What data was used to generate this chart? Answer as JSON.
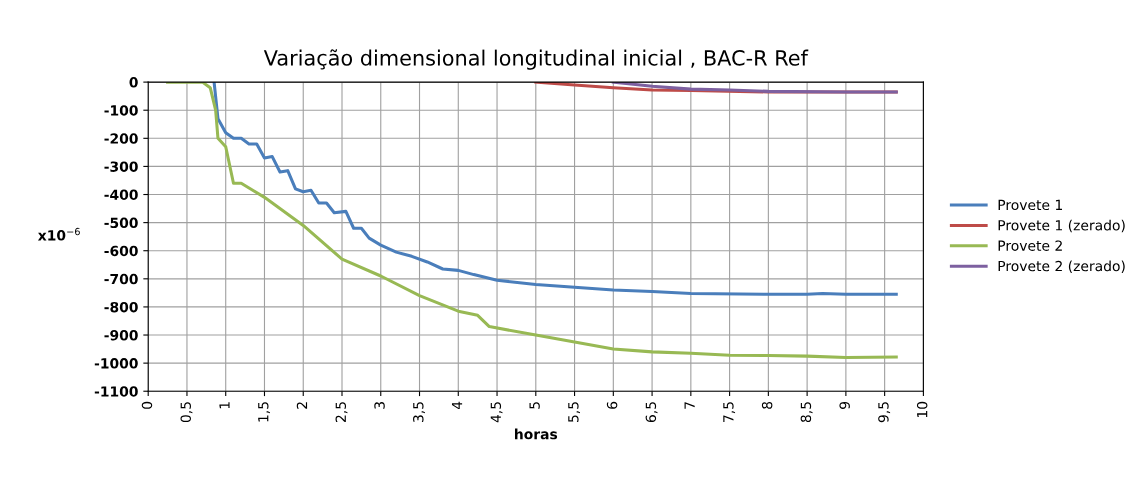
{
  "chart_data": {
    "type": "line",
    "title": "Variação dimensional longitudinal inicial , BAC-R Ref",
    "xlabel": "horas",
    "ylabel": "x10$^{−6}$",
    "xlim": [
      0,
      10
    ],
    "xticks": [
      0,
      {
        "value": 0.5,
        "label": "0,5"
      },
      1,
      {
        "value": 1.5,
        "label": "1,5"
      },
      2,
      {
        "value": 2.5,
        "label": "2,5"
      },
      3,
      {
        "value": 3.5,
        "label": "3,5"
      },
      4,
      {
        "value": 4.5,
        "label": "4,5"
      },
      5,
      {
        "value": 5.5,
        "label": "5,5"
      },
      6,
      {
        "value": 6.5,
        "label": "6,5"
      },
      7,
      {
        "value": 7.5,
        "label": "7,5"
      },
      8,
      {
        "value": 8.5,
        "label": "8,5"
      },
      9,
      {
        "value": 9.5,
        "label": "9,5"
      },
      10
    ],
    "ylim": [
      -1100,
      0
    ],
    "yticks": [
      -1100,
      -1000,
      -900,
      -800,
      -700,
      -600,
      -500,
      -400,
      -300,
      -200,
      -100,
      0
    ],
    "grid": true,
    "legend": "right",
    "marker": "none",
    "line_style": "solid",
    "series": [
      {
        "name": "Provete 1",
        "color": "#4a7ebb",
        "x": [
          0.85,
          0.9,
          1.0,
          1.1,
          1.2,
          1.3,
          1.4,
          1.5,
          1.6,
          1.7,
          1.8,
          1.9,
          2.0,
          2.1,
          2.2,
          2.3,
          2.4,
          2.55,
          2.65,
          2.75,
          2.85,
          3.0,
          3.2,
          3.4,
          3.6,
          3.8,
          4.0,
          4.2,
          4.5,
          5.0,
          5.5,
          6.0,
          6.5,
          7.0,
          8.0,
          8.5,
          8.7,
          9.0,
          9.65
        ],
        "values": [
          0,
          -130,
          -180,
          -200,
          -200,
          -220,
          -220,
          -270,
          -265,
          -320,
          -315,
          -380,
          -390,
          -385,
          -430,
          -430,
          -465,
          -460,
          -520,
          -520,
          -555,
          -580,
          -605,
          -620,
          -640,
          -665,
          -670,
          -685,
          -705,
          -720,
          -730,
          -740,
          -745,
          -752,
          -755,
          -755,
          -752,
          -755,
          -755
        ]
      },
      {
        "name": "Provete 1 (zerado)",
        "color": "#be4b48",
        "x": [
          5.0,
          5.5,
          6.0,
          6.5,
          7.0,
          8.0,
          9.0,
          9.65
        ],
        "values": [
          0,
          -10,
          -20,
          -28,
          -30,
          -35,
          -35,
          -35
        ]
      },
      {
        "name": "Provete 2",
        "color": "#98b954",
        "x": [
          0.25,
          0.7,
          0.8,
          0.87,
          0.9,
          1.0,
          1.1,
          1.2,
          1.5,
          2.0,
          2.5,
          3.0,
          3.5,
          4.0,
          4.25,
          4.4,
          5.0,
          5.5,
          6.0,
          6.5,
          7.0,
          7.5,
          8.0,
          8.5,
          9.0,
          9.65
        ],
        "values": [
          0,
          0,
          -20,
          -100,
          -200,
          -230,
          -360,
          -360,
          -410,
          -510,
          -630,
          -690,
          -760,
          -815,
          -830,
          -870,
          -900,
          -925,
          -950,
          -960,
          -965,
          -972,
          -973,
          -975,
          -980,
          -978
        ]
      },
      {
        "name": "Provete 2 (zerado)",
        "color": "#7d60a0",
        "x": [
          6.0,
          6.5,
          7.0,
          7.5,
          8.0,
          9.0,
          9.65
        ],
        "values": [
          0,
          -15,
          -25,
          -28,
          -33,
          -35,
          -35
        ]
      }
    ]
  }
}
